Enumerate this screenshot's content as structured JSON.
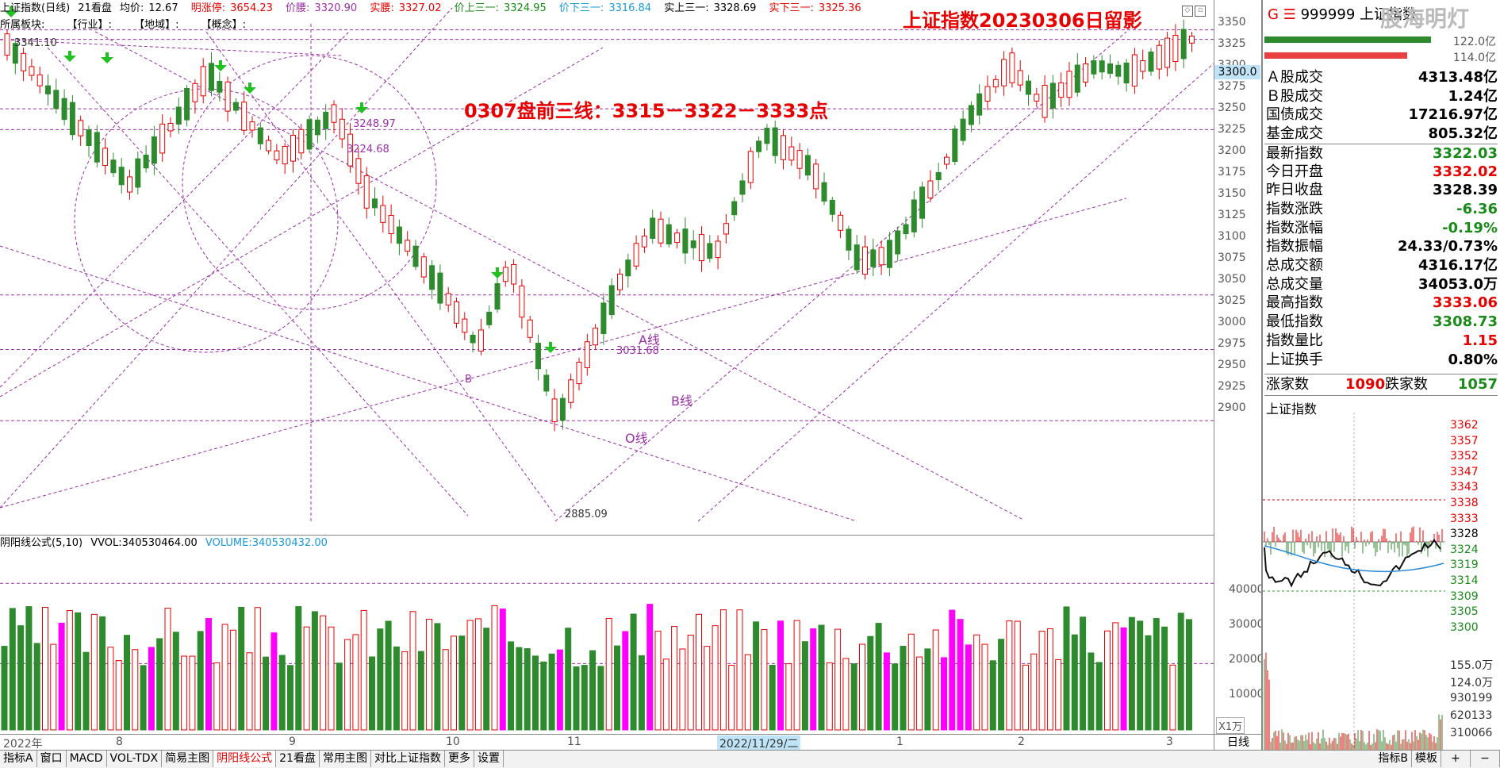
{
  "header": {
    "title": "上证指数(日线)",
    "view": "21看盘",
    "avg_label": "均价:",
    "avg_value": "12.67",
    "limit_up_label": "明涨停:",
    "limit_up_value": "3654.23",
    "waist_label": "价腰:",
    "waist_value": "3320.90",
    "real_waist_label": "实腰:",
    "real_waist_value": "3327.02",
    "up3_label": "价上三一:",
    "up3_value": "3324.95",
    "down3_label": "价下三一:",
    "down3_value": "3316.84",
    "real_up3_label": "实上三一:",
    "real_up3_value": "3328.69",
    "real_down3_label": "实下三一:",
    "real_down3_value": "3325.36"
  },
  "sector": {
    "label": "所属板块:",
    "industry": "【行业】:",
    "region": "【地域】:",
    "concept": "【概念】:"
  },
  "big_title": "上证指数20230306日留影",
  "annotation": "0307盘前三线：3315－3322－3333点",
  "chart_labels": {
    "high_mark": "3341.10",
    "low_mark": "2885.09",
    "mark1": "3248.97",
    "mark2": "3224.68",
    "mark3": "3031.68",
    "line_a": "A线",
    "line_b": "B线",
    "line_o": "O线",
    "b_mark": "B"
  },
  "price_axis": {
    "ticks": [
      "3350",
      "3325",
      "3300",
      "3275",
      "3250",
      "3225",
      "3200",
      "3175",
      "3150",
      "3125",
      "3100",
      "3075",
      "3050",
      "3025",
      "3000",
      "2975",
      "2950",
      "2925",
      "2900"
    ],
    "current": "3300.0"
  },
  "volume": {
    "indicator": "阴阳线公式(5,10)",
    "vvol_label": "VVOL:",
    "vvol_value": "340530464.00",
    "volume_label": "VOLUME:",
    "volume_value": "340530432.00",
    "ticks": [
      "40000",
      "30000",
      "20000",
      "10000"
    ],
    "unit": "X1万"
  },
  "dates": {
    "year": "2022年",
    "months": [
      "8",
      "9",
      "10",
      "11",
      "1",
      "2",
      "3"
    ],
    "selected": "2022/11/29/二"
  },
  "period": "日线",
  "tabs": [
    "指标A",
    "窗口",
    "MACD",
    "VOL-TDX",
    "简易主图",
    "阴阳线公式",
    "21看盘",
    "常用主图",
    "对比上证指数",
    "更多",
    "设置"
  ],
  "active_tab": "阴阳线公式",
  "tabs_right": [
    "指标B",
    "模板"
  ],
  "right_panel": {
    "letter": "G",
    "code": "999999",
    "name": "上证指数",
    "logo": "股海明灯",
    "bar1_value": "122.0亿",
    "bar2_value": "114.0亿",
    "stats": [
      {
        "k": "Ａ股成交",
        "v": "4313.48亿",
        "c": "k"
      },
      {
        "k": "Ｂ股成交",
        "v": "1.24亿",
        "c": "k"
      },
      {
        "k": "国债成交",
        "v": "17216.97亿",
        "c": "k"
      },
      {
        "k": "基金成交",
        "v": "805.32亿",
        "c": "k"
      },
      {
        "k": "最新指数",
        "v": "3322.03",
        "c": "g"
      },
      {
        "k": "今日开盘",
        "v": "3332.02",
        "c": "r"
      },
      {
        "k": "昨日收盘",
        "v": "3328.39",
        "c": "k"
      },
      {
        "k": "指数涨跌",
        "v": "-6.36",
        "c": "g"
      },
      {
        "k": "指数涨幅",
        "v": "-0.19%",
        "c": "g"
      },
      {
        "k": "指数振幅",
        "v": "24.33/0.73%",
        "c": "k"
      },
      {
        "k": "总成交额",
        "v": "4316.17亿",
        "c": "k"
      },
      {
        "k": "总成交量",
        "v": "34053.0万",
        "c": "k"
      },
      {
        "k": "最高指数",
        "v": "3333.06",
        "c": "r"
      },
      {
        "k": "最低指数",
        "v": "3308.73",
        "c": "g"
      },
      {
        "k": "指数量比",
        "v": "1.15",
        "c": "r"
      },
      {
        "k": "上证换手",
        "v": "0.80%",
        "c": "k"
      }
    ],
    "up_label": "涨家数",
    "up_value": "1090",
    "down_label": "跌家数",
    "down_value": "1057",
    "mini_title": "上证指数",
    "mini_ticks": [
      "3362",
      "3357",
      "3352",
      "3347",
      "3343",
      "3338",
      "3333",
      "3328",
      "3324",
      "3319",
      "3314",
      "3309",
      "3305",
      "3300"
    ],
    "mini_vol_ticks": [
      "155.0万",
      "124.0万",
      "930199",
      "620133",
      "310066"
    ],
    "bottom_buttons": [
      "+",
      "−"
    ]
  },
  "colors": {
    "up": "#e60000",
    "down": "#2d8a2d",
    "special": "#ff00ff",
    "guide": "#9a2fa6",
    "bg": "#ffffff"
  }
}
